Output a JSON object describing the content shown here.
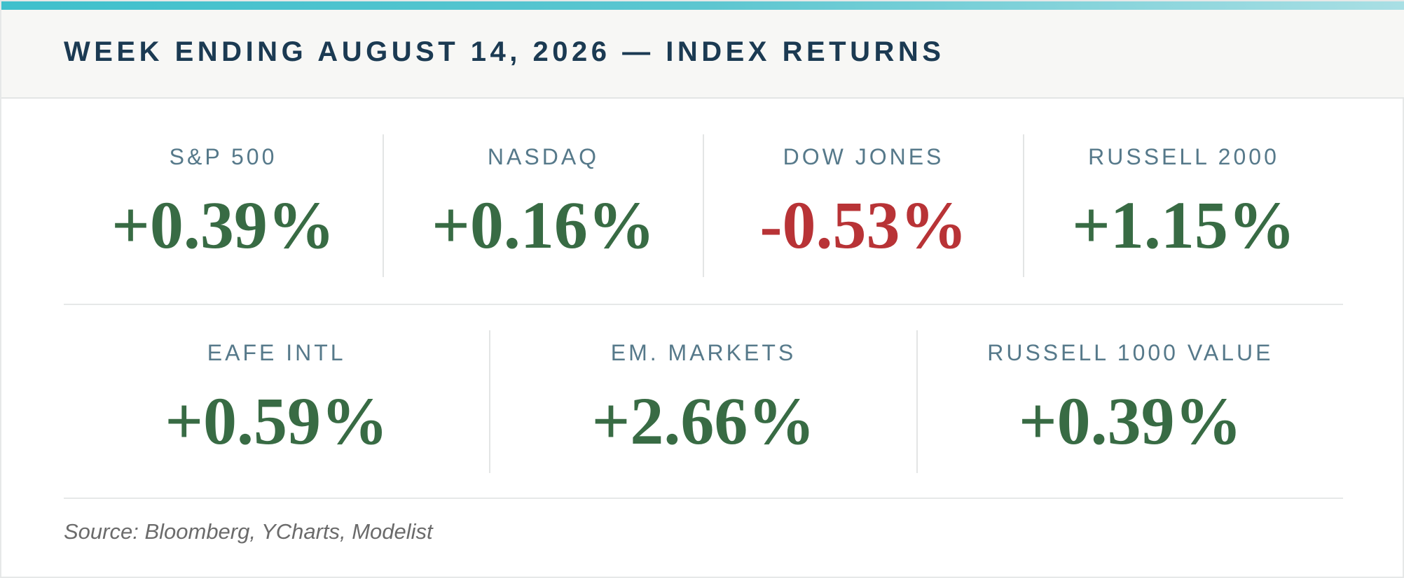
{
  "header": {
    "title": "WEEK ENDING AUGUST 14, 2026 — INDEX RETURNS"
  },
  "indices_row1": [
    {
      "label": "S&P 500",
      "value": "+0.39%",
      "direction": "up"
    },
    {
      "label": "NASDAQ",
      "value": "+0.16%",
      "direction": "up"
    },
    {
      "label": "DOW JONES",
      "value": "-0.53%",
      "direction": "down"
    },
    {
      "label": "RUSSELL 2000",
      "value": "+1.15%",
      "direction": "up"
    }
  ],
  "indices_row2": [
    {
      "label": "EAFE INTL",
      "value": "+0.59%",
      "direction": "up"
    },
    {
      "label": "EM. MARKETS",
      "value": "+2.66%",
      "direction": "up"
    },
    {
      "label": "RUSSELL 1000 VALUE",
      "value": "+0.39%",
      "direction": "up"
    }
  ],
  "footer": {
    "source": "Source: Bloomberg, YCharts, Modelist"
  },
  "colors": {
    "accent": "#3fc0cc",
    "title": "#1b3a52",
    "label": "#56798a",
    "positive": "#386b44",
    "negative": "#b83336"
  }
}
